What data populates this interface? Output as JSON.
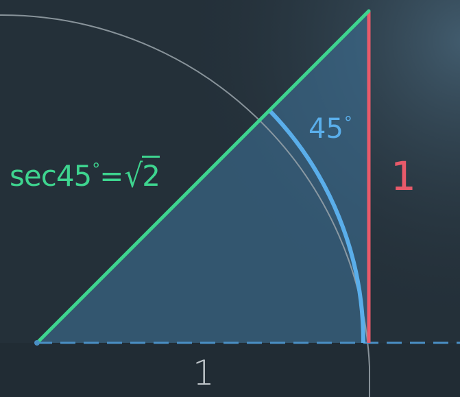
{
  "diagram": {
    "hypotenuse_label": {
      "prefix": "sec45",
      "degree": "°",
      "equals": "=",
      "sqrt": "√",
      "radicand": "2"
    },
    "angle_label": {
      "value": "45",
      "degree": "°"
    },
    "opposite_label": "1",
    "adjacent_label": "1"
  },
  "colors": {
    "background": "#243039",
    "triangle_fill": "#3d6f94",
    "hypotenuse": "#3ed48f",
    "opposite": "#e85a6a",
    "arc": "#5aaeea",
    "circle": "#9aa4ab",
    "baseline": "#4a8fc4"
  }
}
